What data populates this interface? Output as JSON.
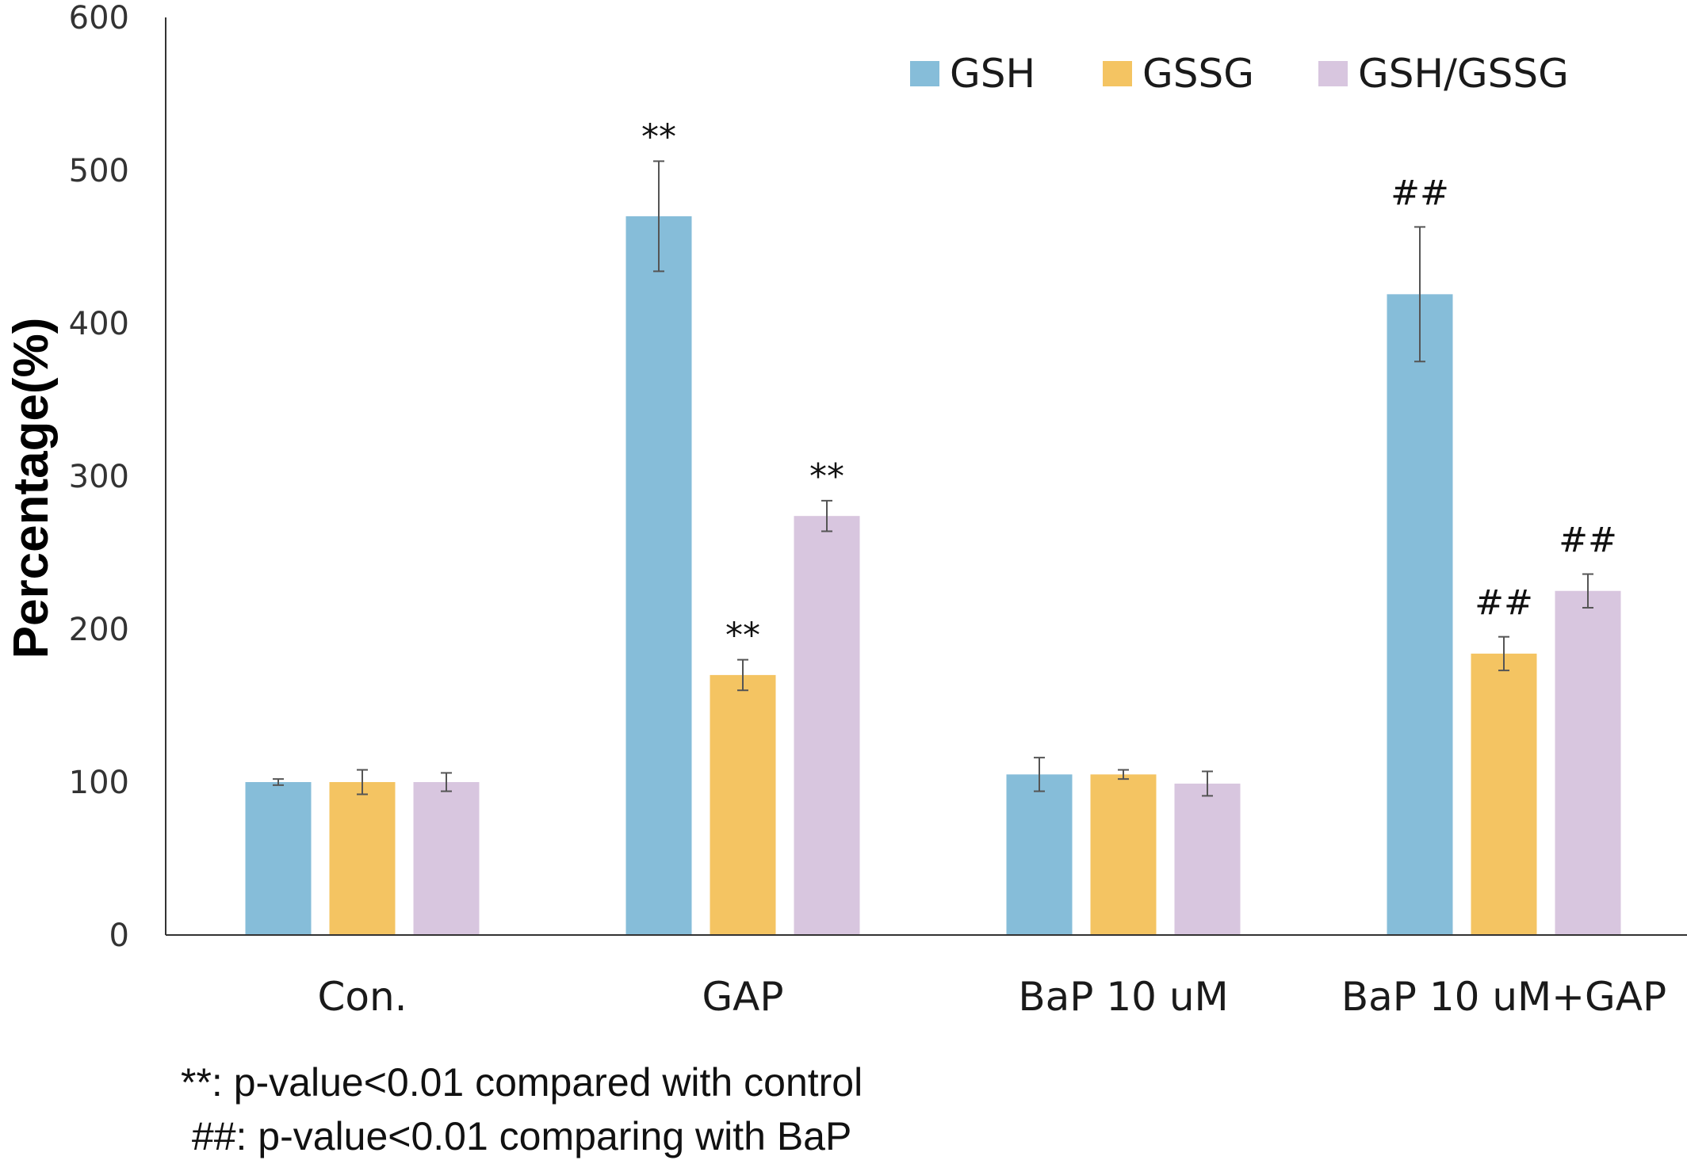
{
  "chart_data": {
    "type": "bar",
    "ylabel": "Percentage(%)",
    "xlabel": "",
    "ylim": [
      0,
      600
    ],
    "yticks": [
      0,
      100,
      200,
      300,
      400,
      500,
      600
    ],
    "grid": false,
    "legend_position": "top-right",
    "categories": [
      "Con.",
      "GAP",
      "BaP 10 uM",
      "BaP 10 uM+GAP"
    ],
    "series": [
      {
        "name": "GSH",
        "color": "#86BDD9",
        "values": [
          100,
          470,
          105,
          419
        ],
        "errors": [
          2,
          36,
          11,
          44
        ],
        "annotations": [
          "",
          "**",
          "",
          "##"
        ]
      },
      {
        "name": "GSSG",
        "color": "#F4C462",
        "values": [
          100,
          170,
          105,
          184
        ],
        "errors": [
          8,
          10,
          3,
          11
        ],
        "annotations": [
          "",
          "**",
          "",
          "##"
        ]
      },
      {
        "name": "GSH/GSSG",
        "color": "#D8C6DF",
        "values": [
          100,
          274,
          99,
          225
        ],
        "errors": [
          6,
          10,
          8,
          11
        ],
        "annotations": [
          "",
          "**",
          "",
          "##"
        ]
      }
    ],
    "footnotes": [
      "**: p-value<0.01 compared with control",
      " ##: p-value<0.01 comparing with BaP"
    ]
  }
}
